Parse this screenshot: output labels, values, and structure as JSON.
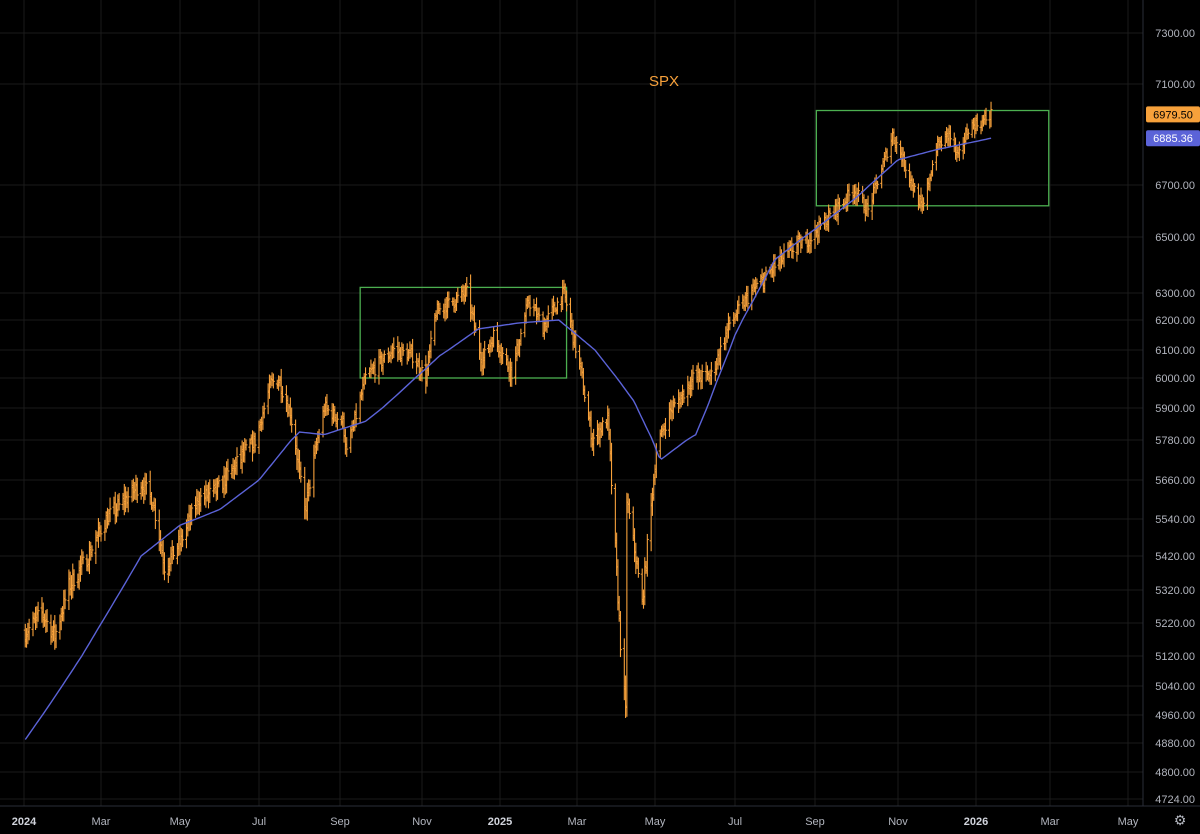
{
  "chart_data": {
    "type": "bar",
    "style": "ohlc-daily",
    "title": "SPX",
    "colors": {
      "price": "#f7a13b",
      "ma": "#5b63d8",
      "box": "#4caf50",
      "grid": "#1a1a1a",
      "background": "#000000"
    },
    "last_price": "6979.50",
    "ma_value": "6885.36",
    "y_ticks": [
      "7300.00",
      "7100.00",
      "6700.00",
      "6500.00",
      "6300.00",
      "6200.00",
      "6100.00",
      "6000.00",
      "5900.00",
      "5780.00",
      "5660.00",
      "5540.00",
      "5420.00",
      "5320.00",
      "5220.00",
      "5120.00",
      "5040.00",
      "4960.00",
      "4880.00",
      "4800.00",
      "4724.00"
    ],
    "x_ticks": [
      {
        "label": "2024",
        "major": true
      },
      {
        "label": "Mar",
        "major": false
      },
      {
        "label": "May",
        "major": false
      },
      {
        "label": "Jul",
        "major": false
      },
      {
        "label": "Sep",
        "major": false
      },
      {
        "label": "Nov",
        "major": false
      },
      {
        "label": "2025",
        "major": true
      },
      {
        "label": "Mar",
        "major": false
      },
      {
        "label": "May",
        "major": false
      },
      {
        "label": "Jul",
        "major": false
      },
      {
        "label": "Sep",
        "major": false
      },
      {
        "label": "Nov",
        "major": false
      },
      {
        "label": "2026",
        "major": true
      },
      {
        "label": "Mar",
        "major": false
      },
      {
        "label": "May",
        "major": false
      }
    ],
    "price_path": [
      [
        "2024-01-02",
        5190
      ],
      [
        "2024-01-15",
        5250
      ],
      [
        "2024-01-25",
        5180
      ],
      [
        "2024-02-05",
        5330
      ],
      [
        "2024-02-20",
        5420
      ],
      [
        "2024-03-05",
        5540
      ],
      [
        "2024-03-20",
        5600
      ],
      [
        "2024-04-01",
        5650
      ],
      [
        "2024-04-10",
        5600
      ],
      [
        "2024-04-19",
        5390
      ],
      [
        "2024-05-01",
        5460
      ],
      [
        "2024-05-15",
        5600
      ],
      [
        "2024-05-30",
        5630
      ],
      [
        "2024-06-12",
        5700
      ],
      [
        "2024-06-28",
        5780
      ],
      [
        "2024-07-10",
        5980
      ],
      [
        "2024-07-16",
        6000
      ],
      [
        "2024-07-25",
        5880
      ],
      [
        "2024-08-05",
        5560
      ],
      [
        "2024-08-20",
        5900
      ],
      [
        "2024-09-03",
        5850
      ],
      [
        "2024-09-06",
        5740
      ],
      [
        "2024-09-20",
        6000
      ],
      [
        "2024-10-10",
        6100
      ],
      [
        "2024-10-25",
        6080
      ],
      [
        "2024-11-04",
        6000
      ],
      [
        "2024-11-12",
        6230
      ],
      [
        "2024-11-25",
        6270
      ],
      [
        "2024-12-06",
        6300
      ],
      [
        "2024-12-18",
        6060
      ],
      [
        "2024-12-27",
        6150
      ],
      [
        "2025-01-10",
        6020
      ],
      [
        "2025-01-23",
        6270
      ],
      [
        "2025-02-03",
        6180
      ],
      [
        "2025-02-19",
        6300
      ],
      [
        "2025-03-05",
        6000
      ],
      [
        "2025-03-13",
        5780
      ],
      [
        "2025-03-25",
        5860
      ],
      [
        "2025-04-04",
        5160
      ],
      [
        "2025-04-08",
        4960
      ],
      [
        "2025-04-09",
        5600
      ],
      [
        "2025-04-21",
        5280
      ],
      [
        "2025-05-02",
        5750
      ],
      [
        "2025-05-12",
        5880
      ],
      [
        "2025-05-30",
        6000
      ],
      [
        "2025-06-13",
        6010
      ],
      [
        "2025-06-27",
        6190
      ],
      [
        "2025-07-15",
        6310
      ],
      [
        "2025-07-31",
        6390
      ],
      [
        "2025-08-15",
        6460
      ],
      [
        "2025-08-29",
        6500
      ],
      [
        "2025-09-15",
        6600
      ],
      [
        "2025-09-30",
        6680
      ],
      [
        "2025-10-10",
        6600
      ],
      [
        "2025-10-28",
        6900
      ],
      [
        "2025-11-05",
        6800
      ],
      [
        "2025-11-20",
        6600
      ],
      [
        "2025-12-01",
        6850
      ],
      [
        "2025-12-11",
        6900
      ],
      [
        "2025-12-18",
        6800
      ],
      [
        "2025-12-26",
        6930
      ],
      [
        "2026-01-06",
        6950
      ],
      [
        "2026-01-13",
        6979.5
      ]
    ],
    "ma_path": [
      [
        "2024-01-02",
        4890
      ],
      [
        "2024-02-15",
        5120
      ],
      [
        "2024-04-01",
        5420
      ],
      [
        "2024-05-01",
        5520
      ],
      [
        "2024-06-01",
        5570
      ],
      [
        "2024-07-01",
        5660
      ],
      [
        "2024-08-01",
        5810
      ],
      [
        "2024-08-20",
        5800
      ],
      [
        "2024-09-20",
        5850
      ],
      [
        "2024-10-15",
        5950
      ],
      [
        "2024-11-15",
        6080
      ],
      [
        "2024-12-15",
        6170
      ],
      [
        "2025-01-15",
        6190
      ],
      [
        "2025-02-15",
        6200
      ],
      [
        "2025-03-15",
        6100
      ],
      [
        "2025-04-15",
        5920
      ],
      [
        "2025-05-05",
        5720
      ],
      [
        "2025-06-01",
        5800
      ],
      [
        "2025-07-01",
        6150
      ],
      [
        "2025-08-01",
        6420
      ],
      [
        "2025-09-01",
        6530
      ],
      [
        "2025-10-01",
        6650
      ],
      [
        "2025-11-01",
        6800
      ],
      [
        "2025-12-01",
        6840
      ],
      [
        "2026-01-13",
        6885.36
      ]
    ],
    "range_boxes": [
      {
        "start": "2024-09-16",
        "end": "2025-02-21",
        "low": 6000,
        "high": 6320
      },
      {
        "start": "2025-09-02",
        "end": "2026-02-28",
        "low": 6620,
        "high": 6995
      }
    ]
  }
}
